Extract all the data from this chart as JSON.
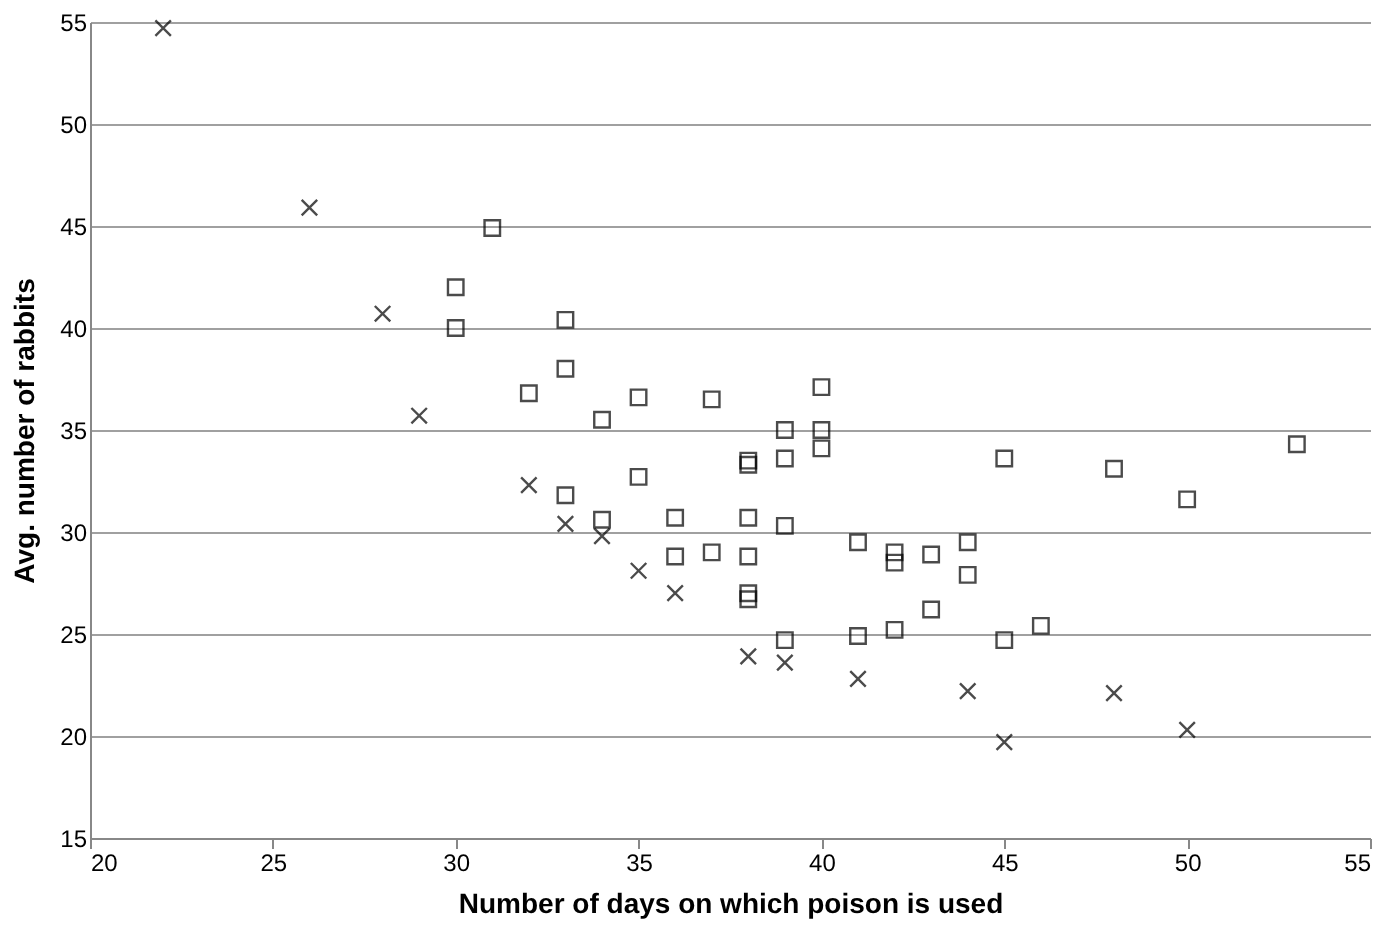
{
  "chart_data": {
    "type": "scatter",
    "xlabel": "Number of days on which poison is used",
    "ylabel": "Avg. number of rabbits",
    "xlim": [
      20,
      55
    ],
    "xticks": [
      20,
      25,
      30,
      35,
      40,
      45,
      50,
      55
    ],
    "ylim": [
      15,
      55
    ],
    "yticks": [
      15,
      20,
      25,
      30,
      35,
      40,
      45,
      50,
      55
    ],
    "grid": "y",
    "series": [
      {
        "marker": "square",
        "color": "#000000",
        "x": [
          31,
          30,
          30,
          33,
          33,
          32,
          34,
          35,
          37,
          40,
          39,
          40,
          40,
          38,
          38,
          39,
          33,
          35,
          34,
          36,
          38,
          39,
          36,
          37,
          38,
          38,
          38,
          39,
          41,
          42,
          42,
          43,
          44,
          44,
          41,
          42,
          43,
          45,
          48,
          50,
          53,
          45,
          46
        ],
        "values": [
          44.9,
          42.0,
          40.0,
          40.4,
          38.0,
          36.8,
          35.5,
          36.6,
          36.5,
          37.1,
          35.0,
          35.0,
          34.1,
          33.5,
          33.3,
          33.6,
          31.8,
          32.7,
          30.6,
          30.7,
          30.7,
          30.3,
          28.8,
          29.0,
          28.8,
          27.0,
          26.7,
          24.7,
          29.5,
          29.0,
          28.5,
          28.9,
          29.5,
          27.9,
          24.9,
          25.2,
          26.2,
          33.6,
          33.1,
          31.6,
          34.3,
          24.7,
          25.4
        ]
      },
      {
        "marker": "cross",
        "color": "#000000",
        "x": [
          22,
          26,
          28,
          29,
          32,
          33,
          34,
          35,
          36,
          38,
          39,
          41,
          44,
          45,
          48,
          50
        ],
        "values": [
          54.7,
          45.9,
          40.7,
          35.7,
          32.3,
          30.4,
          29.8,
          28.1,
          27.0,
          23.9,
          23.6,
          22.8,
          22.2,
          19.7,
          22.1,
          20.3
        ]
      }
    ]
  }
}
